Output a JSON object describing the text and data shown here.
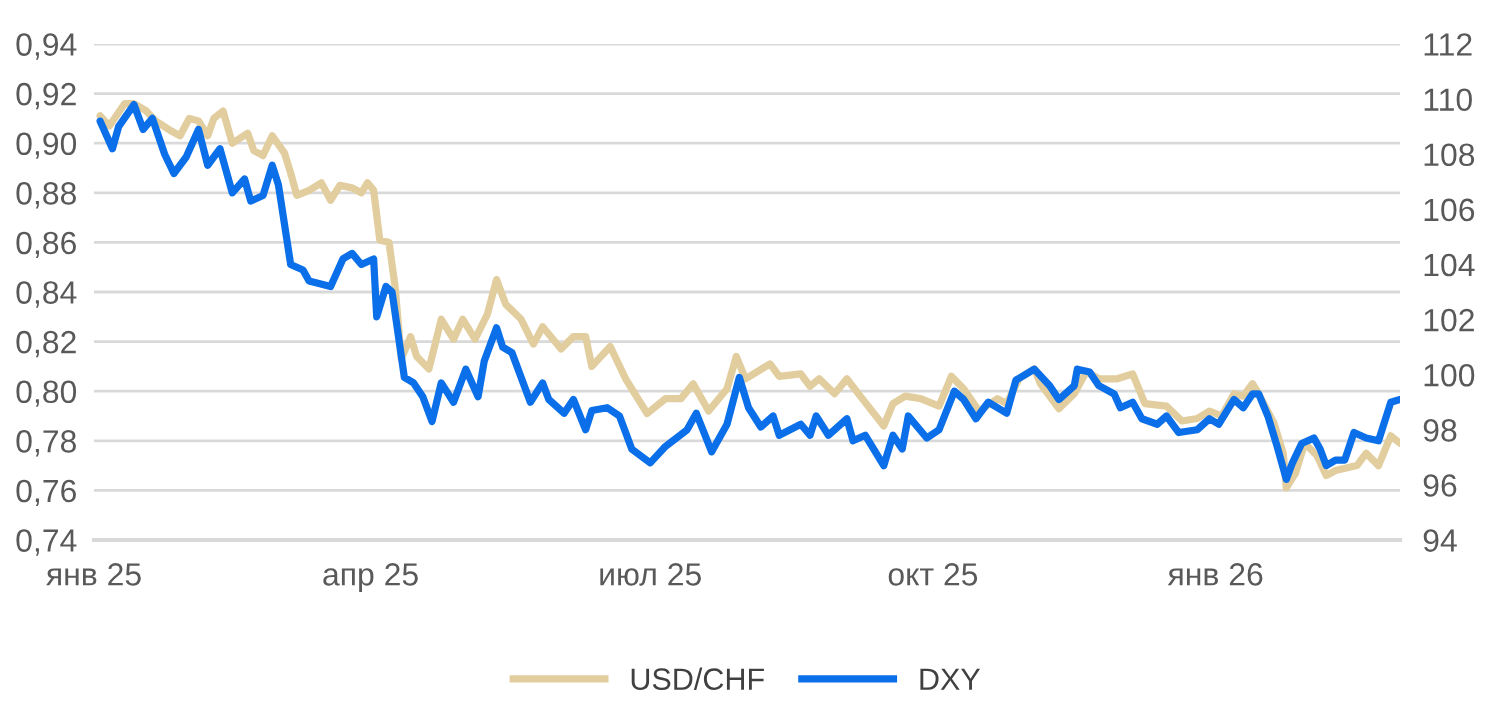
{
  "chart_data": {
    "type": "line",
    "xlim": [
      "2025-01-01",
      "2026-03-02"
    ],
    "xticks": [
      {
        "value": "2025-01-01",
        "label": "янв 25"
      },
      {
        "value": "2025-04-01",
        "label": "апр 25"
      },
      {
        "value": "2025-07-01",
        "label": "июл 25"
      },
      {
        "value": "2025-10-01",
        "label": "окт 25"
      },
      {
        "value": "2026-01-01",
        "label": "янв 26"
      }
    ],
    "ylim": [
      0.74,
      0.94
    ],
    "yticks": [
      {
        "value": 0.74,
        "label": "0,74"
      },
      {
        "value": 0.76,
        "label": "0,76"
      },
      {
        "value": 0.78,
        "label": "0,78"
      },
      {
        "value": 0.8,
        "label": "0,80"
      },
      {
        "value": 0.82,
        "label": "0,82"
      },
      {
        "value": 0.84,
        "label": "0,84"
      },
      {
        "value": 0.86,
        "label": "0,86"
      },
      {
        "value": 0.88,
        "label": "0,88"
      },
      {
        "value": 0.9,
        "label": "0,90"
      },
      {
        "value": 0.92,
        "label": "0,92"
      },
      {
        "value": 0.94,
        "label": "0,94"
      }
    ],
    "y2lim": [
      94,
      112
    ],
    "y2ticks": [
      94,
      96,
      98,
      100,
      102,
      104,
      106,
      108,
      110,
      112
    ],
    "grid": "y",
    "legend": "bottom",
    "line_style": "solid",
    "marker": "none",
    "series": [
      {
        "name": "USD/CHF",
        "color": "#e2cd9f",
        "x": [
          "2025-01-03",
          "2025-01-06",
          "2025-01-11",
          "2025-01-14",
          "2025-01-18",
          "2025-01-21",
          "2025-01-26",
          "2025-01-29",
          "2025-02-01",
          "2025-02-04",
          "2025-02-07",
          "2025-02-09",
          "2025-02-12",
          "2025-02-15",
          "2025-02-20",
          "2025-02-22",
          "2025-02-25",
          "2025-02-28",
          "2025-03-04",
          "2025-03-06",
          "2025-03-08",
          "2025-03-12",
          "2025-03-16",
          "2025-03-19",
          "2025-03-22",
          "2025-03-26",
          "2025-03-29",
          "2025-03-31",
          "2025-04-02",
          "2025-04-04",
          "2025-04-07",
          "2025-04-09",
          "2025-04-11",
          "2025-04-14",
          "2025-04-16",
          "2025-04-20",
          "2025-04-24",
          "2025-04-28",
          "2025-05-01",
          "2025-05-05",
          "2025-05-09",
          "2025-05-12",
          "2025-05-15",
          "2025-05-20",
          "2025-05-24",
          "2025-05-27",
          "2025-06-02",
          "2025-06-06",
          "2025-06-10",
          "2025-06-12",
          "2025-06-18",
          "2025-06-23",
          "2025-06-30",
          "2025-07-06",
          "2025-07-11",
          "2025-07-15",
          "2025-07-20",
          "2025-07-26",
          "2025-07-29",
          "2025-08-01",
          "2025-08-05",
          "2025-08-09",
          "2025-08-12",
          "2025-08-19",
          "2025-08-22",
          "2025-08-25",
          "2025-08-30",
          "2025-09-03",
          "2025-09-08",
          "2025-09-15",
          "2025-09-18",
          "2025-09-22",
          "2025-09-27",
          "2025-10-03",
          "2025-10-07",
          "2025-10-11",
          "2025-10-16",
          "2025-10-22",
          "2025-10-25",
          "2025-10-29",
          "2025-11-03",
          "2025-11-05",
          "2025-11-11",
          "2025-11-16",
          "2025-11-20",
          "2025-11-24",
          "2025-11-30",
          "2025-12-05",
          "2025-12-09",
          "2025-12-16",
          "2025-12-21",
          "2025-12-26",
          "2025-12-30",
          "2026-01-03",
          "2026-01-07",
          "2026-01-10",
          "2026-01-13",
          "2026-01-15",
          "2026-01-20",
          "2026-01-23",
          "2026-01-24",
          "2026-01-27",
          "2026-01-30",
          "2026-02-03",
          "2026-02-06",
          "2026-02-09",
          "2026-02-16",
          "2026-02-19",
          "2026-02-23",
          "2026-02-27",
          "2026-03-02"
        ],
        "values": [
          0.911,
          0.907,
          0.916,
          0.916,
          0.913,
          0.909,
          0.905,
          0.903,
          0.91,
          0.909,
          0.903,
          0.91,
          0.913,
          0.9,
          0.904,
          0.897,
          0.895,
          0.903,
          0.896,
          0.888,
          0.879,
          0.881,
          0.884,
          0.877,
          0.883,
          0.882,
          0.88,
          0.884,
          0.881,
          0.861,
          0.86,
          0.842,
          0.813,
          0.822,
          0.814,
          0.809,
          0.829,
          0.821,
          0.829,
          0.821,
          0.831,
          0.845,
          0.835,
          0.829,
          0.819,
          0.826,
          0.817,
          0.822,
          0.822,
          0.81,
          0.818,
          0.805,
          0.791,
          0.797,
          0.797,
          0.803,
          0.792,
          0.801,
          0.814,
          0.805,
          0.808,
          0.811,
          0.806,
          0.807,
          0.802,
          0.805,
          0.799,
          0.805,
          0.797,
          0.786,
          0.795,
          0.798,
          0.797,
          0.794,
          0.806,
          0.801,
          0.792,
          0.797,
          0.795,
          0.805,
          0.809,
          0.803,
          0.793,
          0.799,
          0.808,
          0.805,
          0.805,
          0.807,
          0.795,
          0.794,
          0.788,
          0.789,
          0.792,
          0.79,
          0.799,
          0.798,
          0.803,
          0.799,
          0.787,
          0.775,
          0.761,
          0.767,
          0.779,
          0.774,
          0.766,
          0.768,
          0.77,
          0.775,
          0.77,
          0.782,
          0.779
        ]
      },
      {
        "name": "DXY",
        "color": "#0a6fe8",
        "axis": "y2",
        "x": [
          "2025-01-03",
          "2025-01-07",
          "2025-01-09",
          "2025-01-14",
          "2025-01-17",
          "2025-01-20",
          "2025-01-24",
          "2025-01-27",
          "2025-01-31",
          "2025-02-04",
          "2025-02-07",
          "2025-02-11",
          "2025-02-15",
          "2025-02-19",
          "2025-02-21",
          "2025-02-25",
          "2025-02-28",
          "2025-03-02",
          "2025-03-06",
          "2025-03-10",
          "2025-03-12",
          "2025-03-19",
          "2025-03-23",
          "2025-03-26",
          "2025-03-29",
          "2025-04-02",
          "2025-04-03",
          "2025-04-06",
          "2025-04-08",
          "2025-04-12",
          "2025-04-15",
          "2025-04-18",
          "2025-04-21",
          "2025-04-24",
          "2025-04-28",
          "2025-05-02",
          "2025-05-06",
          "2025-05-08",
          "2025-05-12",
          "2025-05-14",
          "2025-05-17",
          "2025-05-23",
          "2025-05-27",
          "2025-05-29",
          "2025-06-03",
          "2025-06-06",
          "2025-06-10",
          "2025-06-12",
          "2025-06-17",
          "2025-06-21",
          "2025-06-25",
          "2025-07-01",
          "2025-07-06",
          "2025-07-13",
          "2025-07-16",
          "2025-07-21",
          "2025-07-26",
          "2025-07-30",
          "2025-08-02",
          "2025-08-06",
          "2025-08-10",
          "2025-08-12",
          "2025-08-19",
          "2025-08-22",
          "2025-08-24",
          "2025-08-28",
          "2025-09-03",
          "2025-09-05",
          "2025-09-09",
          "2025-09-15",
          "2025-09-18",
          "2025-09-21",
          "2025-09-23",
          "2025-09-29",
          "2025-10-03",
          "2025-10-08",
          "2025-10-11",
          "2025-10-15",
          "2025-10-19",
          "2025-10-25",
          "2025-10-28",
          "2025-11-03",
          "2025-11-08",
          "2025-11-11",
          "2025-11-16",
          "2025-11-17",
          "2025-11-21",
          "2025-11-24",
          "2025-11-29",
          "2025-12-01",
          "2025-12-05",
          "2025-12-08",
          "2025-12-13",
          "2025-12-16",
          "2025-12-20",
          "2025-12-26",
          "2025-12-30",
          "2026-01-02",
          "2026-01-07",
          "2026-01-10",
          "2026-01-13",
          "2026-01-15",
          "2026-01-18",
          "2026-01-21",
          "2026-01-24",
          "2026-01-26",
          "2026-01-29",
          "2026-02-02",
          "2026-02-04",
          "2026-02-06",
          "2026-02-09",
          "2026-02-12",
          "2026-02-15",
          "2026-02-19",
          "2026-02-23",
          "2026-02-27",
          "2026-03-02"
        ],
        "values": [
          109.2,
          108.2,
          109.0,
          109.8,
          108.9,
          109.3,
          108.0,
          107.3,
          107.9,
          108.9,
          107.6,
          108.2,
          106.6,
          107.1,
          106.3,
          106.5,
          107.6,
          106.9,
          104.0,
          103.8,
          103.4,
          103.2,
          104.2,
          104.4,
          104.0,
          104.2,
          102.1,
          103.2,
          103.0,
          99.9,
          99.7,
          99.2,
          98.3,
          99.7,
          99.0,
          100.2,
          99.2,
          100.5,
          101.7,
          101.0,
          100.8,
          99.0,
          99.7,
          99.1,
          98.6,
          99.1,
          98.0,
          98.7,
          98.8,
          98.5,
          97.3,
          96.8,
          97.4,
          98.0,
          98.6,
          97.2,
          98.2,
          99.9,
          98.8,
          98.1,
          98.5,
          97.8,
          98.2,
          97.8,
          98.5,
          97.8,
          98.4,
          97.6,
          97.8,
          96.7,
          97.8,
          97.3,
          98.5,
          97.7,
          98.0,
          99.4,
          99.1,
          98.4,
          99.0,
          98.6,
          99.8,
          100.2,
          99.6,
          99.1,
          99.6,
          100.2,
          100.1,
          99.6,
          99.3,
          98.8,
          99.0,
          98.4,
          98.2,
          98.5,
          97.9,
          98.0,
          98.4,
          98.2,
          99.1,
          98.8,
          99.3,
          99.3,
          98.5,
          97.4,
          96.2,
          96.8,
          97.5,
          97.7,
          97.3,
          96.7,
          96.9,
          96.9,
          97.9,
          97.7,
          97.6,
          99.0,
          99.1
        ]
      }
    ]
  }
}
